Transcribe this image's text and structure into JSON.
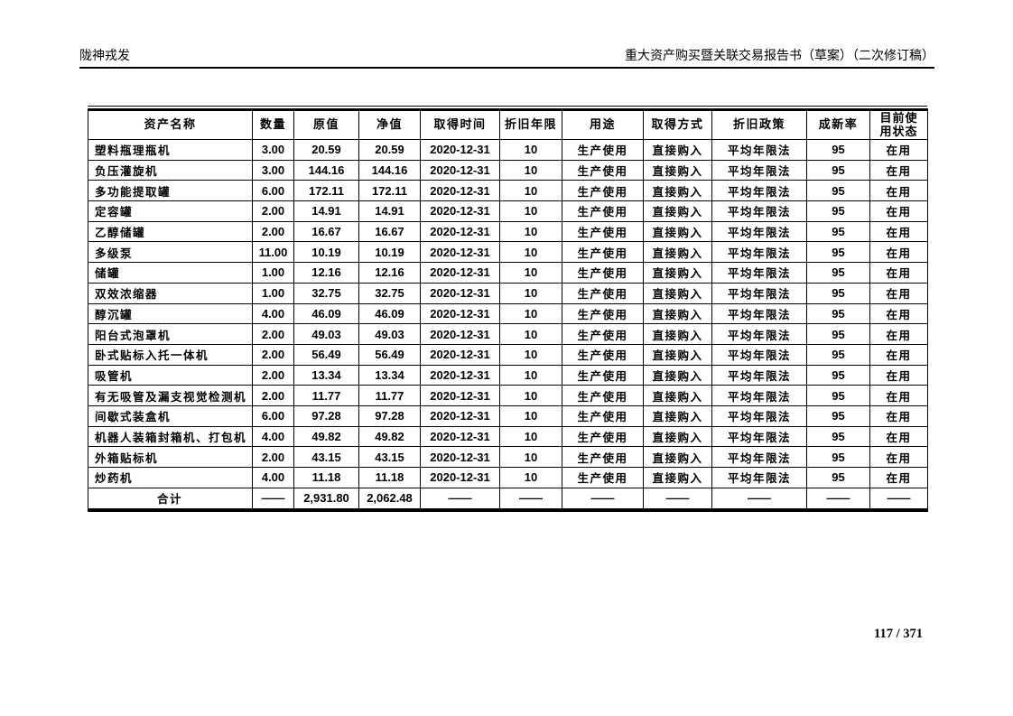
{
  "page": {
    "header_left": "陇神戎发",
    "header_right": "重大资产购买暨关联交易报告书（草案）（二次修订稿）",
    "footer_page": "117 / 371"
  },
  "table": {
    "columns": [
      "资产名称",
      "数量",
      "原值",
      "净值",
      "取得时间",
      "折旧年限",
      "用途",
      "取得方式",
      "折旧政策",
      "成新率",
      "目前使用状态"
    ],
    "rows": [
      [
        "塑料瓶理瓶机",
        "3.00",
        "20.59",
        "20.59",
        "2020-12-31",
        "10",
        "生产使用",
        "直接购入",
        "平均年限法",
        "95",
        "在用"
      ],
      [
        "负压灌旋机",
        "3.00",
        "144.16",
        "144.16",
        "2020-12-31",
        "10",
        "生产使用",
        "直接购入",
        "平均年限法",
        "95",
        "在用"
      ],
      [
        "多功能提取罐",
        "6.00",
        "172.11",
        "172.11",
        "2020-12-31",
        "10",
        "生产使用",
        "直接购入",
        "平均年限法",
        "95",
        "在用"
      ],
      [
        "定容罐",
        "2.00",
        "14.91",
        "14.91",
        "2020-12-31",
        "10",
        "生产使用",
        "直接购入",
        "平均年限法",
        "95",
        "在用"
      ],
      [
        "乙醇储罐",
        "2.00",
        "16.67",
        "16.67",
        "2020-12-31",
        "10",
        "生产使用",
        "直接购入",
        "平均年限法",
        "95",
        "在用"
      ],
      [
        "多级泵",
        "11.00",
        "10.19",
        "10.19",
        "2020-12-31",
        "10",
        "生产使用",
        "直接购入",
        "平均年限法",
        "95",
        "在用"
      ],
      [
        "储罐",
        "1.00",
        "12.16",
        "12.16",
        "2020-12-31",
        "10",
        "生产使用",
        "直接购入",
        "平均年限法",
        "95",
        "在用"
      ],
      [
        "双效浓缩器",
        "1.00",
        "32.75",
        "32.75",
        "2020-12-31",
        "10",
        "生产使用",
        "直接购入",
        "平均年限法",
        "95",
        "在用"
      ],
      [
        "醇沉罐",
        "4.00",
        "46.09",
        "46.09",
        "2020-12-31",
        "10",
        "生产使用",
        "直接购入",
        "平均年限法",
        "95",
        "在用"
      ],
      [
        "阳台式泡罩机",
        "2.00",
        "49.03",
        "49.03",
        "2020-12-31",
        "10",
        "生产使用",
        "直接购入",
        "平均年限法",
        "95",
        "在用"
      ],
      [
        "卧式贴标入托一体机",
        "2.00",
        "56.49",
        "56.49",
        "2020-12-31",
        "10",
        "生产使用",
        "直接购入",
        "平均年限法",
        "95",
        "在用"
      ],
      [
        "吸管机",
        "2.00",
        "13.34",
        "13.34",
        "2020-12-31",
        "10",
        "生产使用",
        "直接购入",
        "平均年限法",
        "95",
        "在用"
      ],
      [
        "有无吸管及漏支视觉检测机",
        "2.00",
        "11.77",
        "11.77",
        "2020-12-31",
        "10",
        "生产使用",
        "直接购入",
        "平均年限法",
        "95",
        "在用"
      ],
      [
        "间歇式装盒机",
        "6.00",
        "97.28",
        "97.28",
        "2020-12-31",
        "10",
        "生产使用",
        "直接购入",
        "平均年限法",
        "95",
        "在用"
      ],
      [
        "机器人装箱封箱机、打包机",
        "4.00",
        "49.82",
        "49.82",
        "2020-12-31",
        "10",
        "生产使用",
        "直接购入",
        "平均年限法",
        "95",
        "在用"
      ],
      [
        "外箱贴标机",
        "2.00",
        "43.15",
        "43.15",
        "2020-12-31",
        "10",
        "生产使用",
        "直接购入",
        "平均年限法",
        "95",
        "在用"
      ],
      [
        "炒药机",
        "4.00",
        "11.18",
        "11.18",
        "2020-12-31",
        "10",
        "生产使用",
        "直接购入",
        "平均年限法",
        "95",
        "在用"
      ]
    ],
    "total_row": [
      "合计",
      "——",
      "2,931.80",
      "2,062.48",
      "——",
      "——",
      "——",
      "——",
      "——",
      "——",
      "——"
    ]
  }
}
